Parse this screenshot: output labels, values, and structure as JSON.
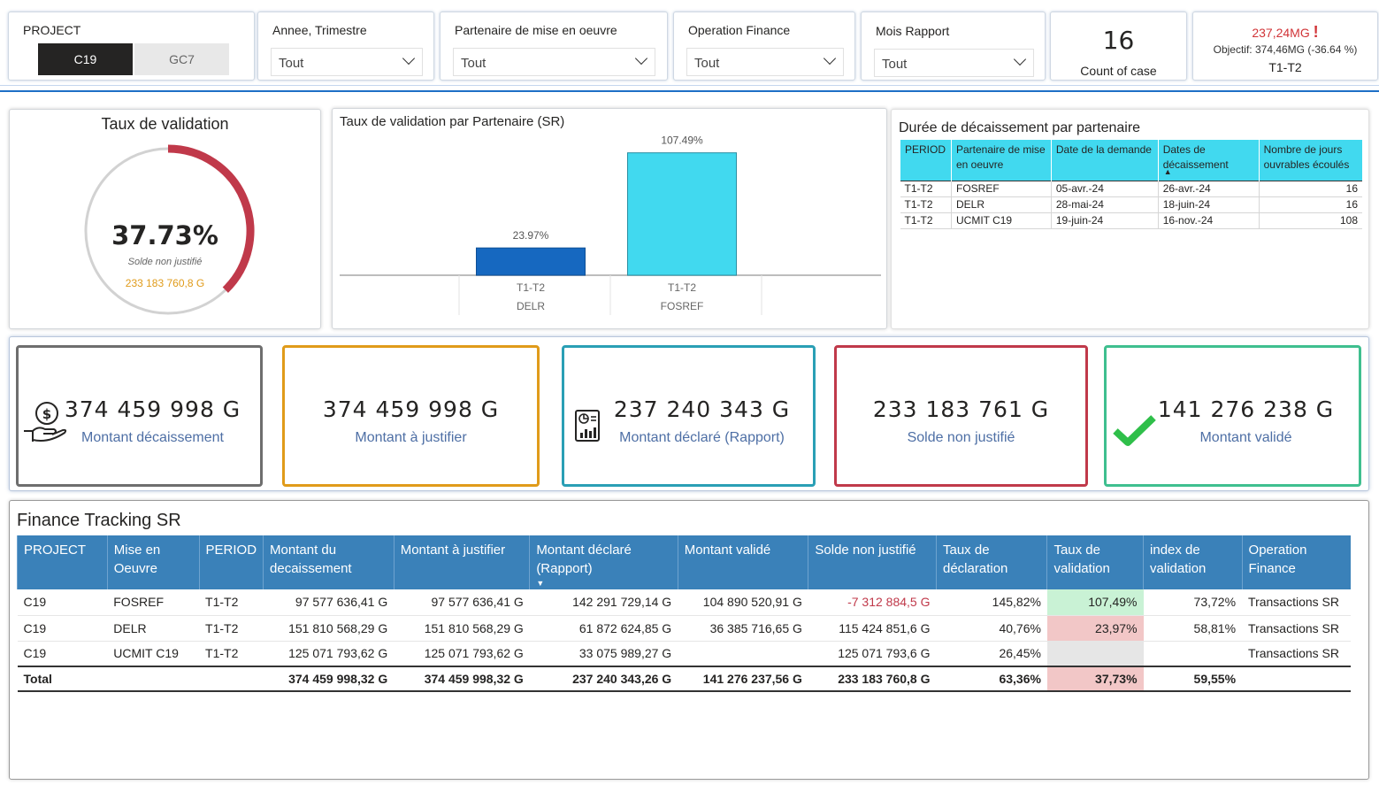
{
  "slicers": {
    "project": {
      "title": "PROJECT",
      "options": [
        "C19",
        "GC7"
      ],
      "selected": "C19"
    },
    "annee": {
      "title": "Annee, Trimestre",
      "value": "Tout"
    },
    "partenaire": {
      "title": "Partenaire de mise en oeuvre",
      "value": "Tout"
    },
    "operation": {
      "title": "Operation Finance",
      "value": "Tout"
    },
    "mois": {
      "title": "Mois Rapport",
      "value": "Tout"
    }
  },
  "count_card": {
    "value": "16",
    "label": "Count of case"
  },
  "goal_card": {
    "value": "237,24MG",
    "alert": "!",
    "objective": "Objectif: 374,46MG (-36.64 %)",
    "period": "T1-T2",
    "value_color": "#d13438"
  },
  "gauge": {
    "title": "Taux de validation",
    "value_text": "37.73%",
    "value": 37.73,
    "sub_label": "Solde non justifié",
    "sub_value": "233 183 760,8 G",
    "arc_color": "#c0394a",
    "track_color": "#d2d2d2",
    "sub_value_color": "#e09b1a"
  },
  "partner_chart": {
    "title": "Taux de validation par Partenaire (SR)",
    "chart_data": {
      "type": "bar",
      "categories": [
        "DELR",
        "FOSREF"
      ],
      "periods": [
        "T1-T2",
        "T1-T2"
      ],
      "values": [
        23.97,
        107.49
      ],
      "data_labels": [
        "23.97%",
        "107.49%"
      ],
      "colors": [
        "#1668c0",
        "#41d9ef"
      ],
      "ylim": [
        0,
        115
      ]
    }
  },
  "duration_table": {
    "title": "Durée de décaissement par partenaire",
    "columns": [
      "PERIOD",
      "Partenaire de mise en oeuvre",
      "Date de la demande",
      "Dates de décaissement",
      "Nombre de jours ouvrables écoulés"
    ],
    "rows": [
      [
        "T1-T2",
        "FOSREF",
        "05-avr.-24",
        "26-avr.-24",
        "16"
      ],
      [
        "T1-T2",
        "DELR",
        "28-mai-24",
        "18-juin-24",
        "16"
      ],
      [
        "T1-T2",
        "UCMIT C19",
        "19-juin-24",
        "16-nov.-24",
        "108"
      ]
    ]
  },
  "kpis": [
    {
      "value": "374 459 998 G",
      "label": "Montant décaissement",
      "icon": "money-hand-icon",
      "border": "#6e6e6e"
    },
    {
      "value": "374 459 998 G",
      "label": "Montant à justifier",
      "icon": "",
      "border": "#e09b1a"
    },
    {
      "value": "237 240 343 G",
      "label": "Montant déclaré (Rapport)",
      "icon": "report-icon",
      "border": "#2a9fb5"
    },
    {
      "value": "233 183 761 G",
      "label": "Solde non justifié",
      "icon": "",
      "border": "#c0394a"
    },
    {
      "value": "141 276 238 G",
      "label": "Montant validé",
      "icon": "checkmark-icon",
      "border": "#3fbf8f"
    }
  ],
  "finance_table": {
    "title": "Finance Tracking SR",
    "columns": [
      "PROJECT",
      "Mise en Oeuvre",
      "PERIOD",
      "Montant du decaissement",
      "Montant à justifier",
      "Montant déclaré (Rapport)",
      "Montant validé",
      "Solde non justifié",
      "Taux de déclaration",
      "Taux de validation",
      "index de validation",
      "Operation Finance"
    ],
    "rows": [
      [
        "C19",
        "FOSREF",
        "T1-T2",
        "97 577 636,41 G",
        "97 577 636,41 G",
        "142 291 729,14 G",
        "104 890 520,91 G",
        "-7 312 884,5 G",
        "145,82%",
        "107,49%",
        "73,72%",
        "Transactions SR"
      ],
      [
        "C19",
        "DELR",
        "T1-T2",
        "151 810 568,29 G",
        "151 810 568,29 G",
        "61 872 624,85 G",
        "36 385 716,65 G",
        "115 424 851,6 G",
        "40,76%",
        "23,97%",
        "58,81%",
        "Transactions SR"
      ],
      [
        "C19",
        "UCMIT C19",
        "T1-T2",
        "125 071 793,62 G",
        "125 071 793,62 G",
        "33 075 989,27 G",
        "",
        "125 071 793,6 G",
        "26,45%",
        "",
        "",
        "Transactions SR"
      ]
    ],
    "total": [
      "Total",
      "",
      "",
      "374 459 998,32 G",
      "374 459 998,32 G",
      "237 240 343,26 G",
      "141 276 237,56 G",
      "233 183 760,8 G",
      "63,36%",
      "37,73%",
      "59,55%",
      ""
    ],
    "validation_colors": [
      "#c9f2d5",
      "#f2c7c7",
      "#e6e6e6"
    ],
    "total_validation_color": "#f2c7c7",
    "negative_color": "#c0394a"
  }
}
